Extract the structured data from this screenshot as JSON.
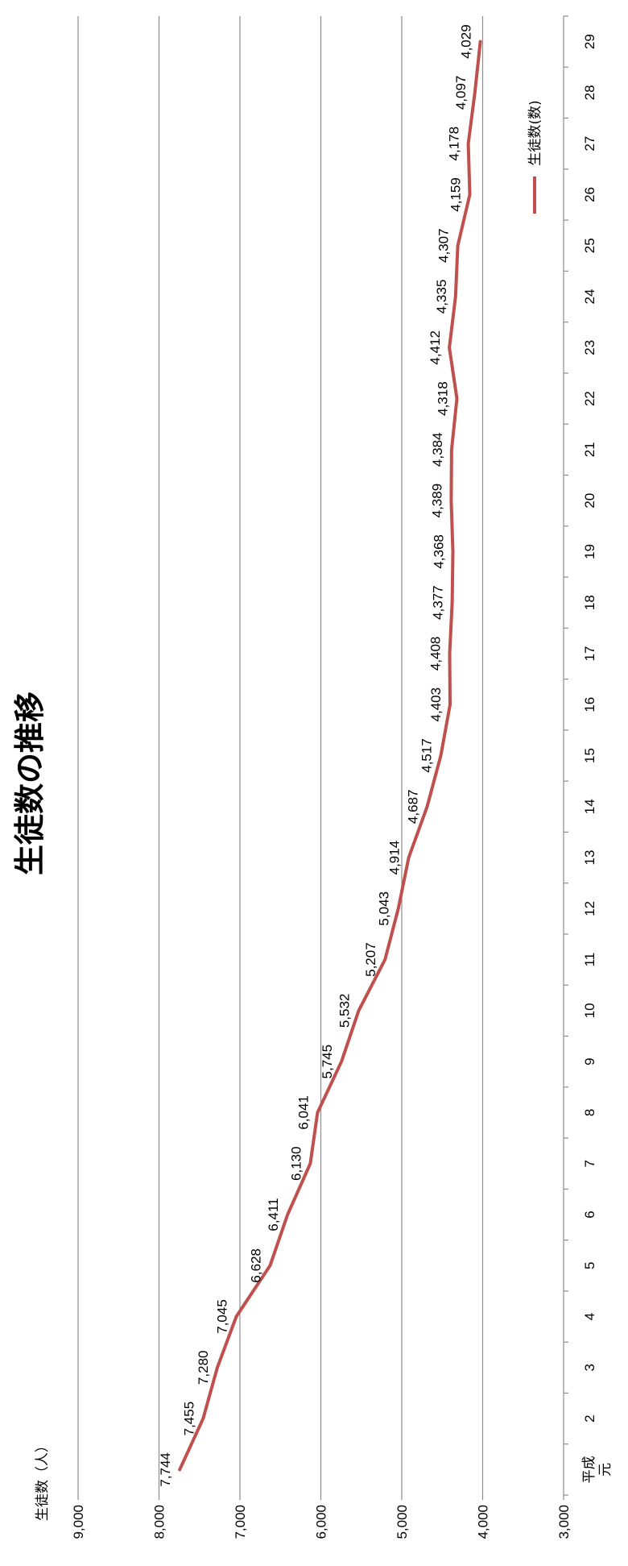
{
  "chart_data": {
    "type": "line",
    "title": "生徒数の推移",
    "ylabel": "生徒数（人）",
    "xlabel": "",
    "ylim": [
      3000,
      9000
    ],
    "y_ticks": [
      "3,000",
      "4,000",
      "5,000",
      "6,000",
      "7,000",
      "8,000",
      "9,000"
    ],
    "categories": [
      "平成元",
      "2",
      "3",
      "4",
      "5",
      "6",
      "7",
      "8",
      "9",
      "10",
      "11",
      "12",
      "13",
      "14",
      "15",
      "16",
      "17",
      "18",
      "19",
      "20",
      "21",
      "22",
      "23",
      "24",
      "25",
      "26",
      "27",
      "28",
      "29"
    ],
    "series": [
      {
        "name": "生徒数(数)",
        "color": "#c0504d",
        "values": [
          7744,
          7455,
          7280,
          7045,
          6628,
          6411,
          6130,
          6041,
          5745,
          5532,
          5207,
          5043,
          4914,
          4687,
          4517,
          4403,
          4408,
          4377,
          4368,
          4389,
          4384,
          4318,
          4412,
          4335,
          4307,
          4159,
          4178,
          4097,
          4029
        ],
        "labels": [
          "7,744",
          "7,455",
          "7,280",
          "7,045",
          "6,628",
          "6,411",
          "6,130",
          "6,041",
          "5,745",
          "5,532",
          "5,207",
          "5,043",
          "4,914",
          "4,687",
          "4,517",
          "4,403",
          "4,408",
          "4,377",
          "4,368",
          "4,389",
          "4,384",
          "4,318",
          "4,412",
          "4,335",
          "4,307",
          "4,159",
          "4,178",
          "4,097",
          "4,029"
        ]
      }
    ],
    "grid": true,
    "legend": "right"
  }
}
